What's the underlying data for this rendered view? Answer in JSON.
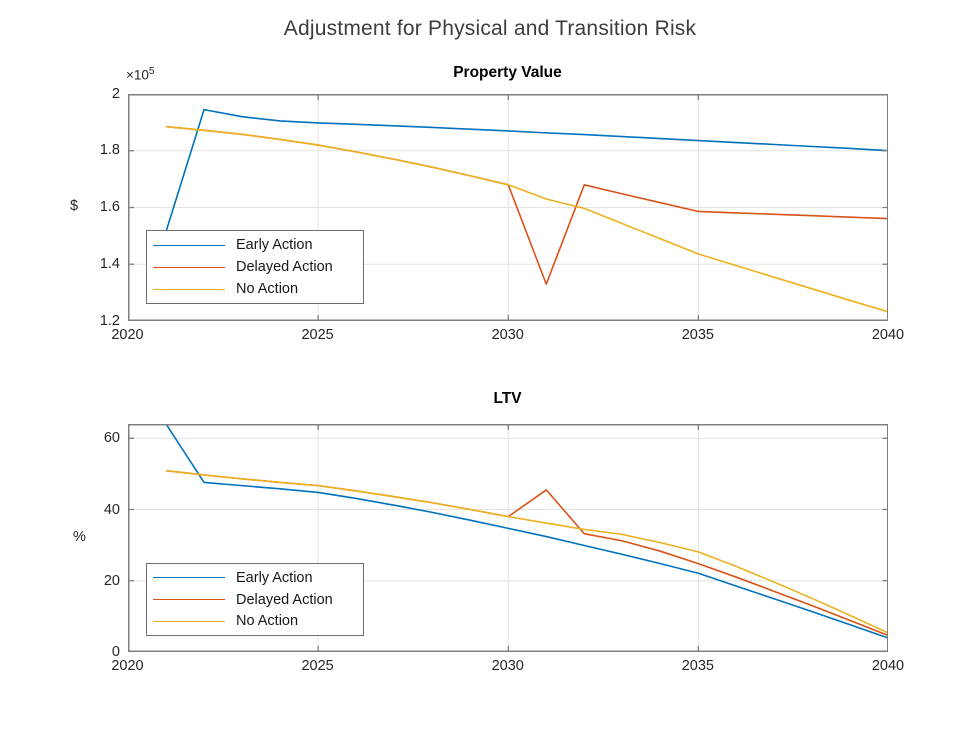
{
  "figure": {
    "title": "Adjustment for Physical and Transition Risk"
  },
  "palette": {
    "early": "#0072BD",
    "delayed": "#D95319",
    "none": "#EDB120",
    "grid": "#e3e3e3",
    "frame": "#7f7f7f",
    "tick_text": "#262626"
  },
  "chart_data": [
    {
      "type": "line",
      "title": "Property Value",
      "ylabel": "$",
      "y_exponent": {
        "mantissa": "×10",
        "exponent": "5"
      },
      "y_unit_note": "values in units of 10^5 dollars",
      "grid": true,
      "legend_position": "lower-left",
      "xlim": [
        2020,
        2040
      ],
      "ylim": [
        1.2,
        2.0
      ],
      "xticks": [
        2020,
        2025,
        2030,
        2035,
        2040
      ],
      "xtick_labels": [
        "2020",
        "2025",
        "2030",
        "2035",
        "2040"
      ],
      "yticks": [
        1.2,
        1.4,
        1.6,
        1.8,
        2.0
      ],
      "ytick_labels": [
        "1.2",
        "1.4",
        "1.6",
        "1.8",
        "2"
      ],
      "x": [
        2021,
        2022,
        2023,
        2024,
        2025,
        2026,
        2027,
        2028,
        2029,
        2030,
        2031,
        2032,
        2033,
        2034,
        2035,
        2036,
        2037,
        2038,
        2039,
        2040
      ],
      "series": [
        {
          "name": "Early Action",
          "color": "early",
          "values": [
            1.515,
            1.945,
            1.92,
            1.905,
            1.898,
            1.893,
            1.888,
            1.882,
            1.876,
            1.87,
            1.863,
            1.857,
            1.85,
            1.843,
            1.836,
            1.829,
            1.822,
            1.815,
            1.808,
            1.8
          ]
        },
        {
          "name": "Delayed Action",
          "color": "delayed",
          "values": [
            1.885,
            1.872,
            1.858,
            1.84,
            1.82,
            1.796,
            1.77,
            1.742,
            1.712,
            1.68,
            1.33,
            1.68,
            1.648,
            1.617,
            1.586,
            1.581,
            1.576,
            1.571,
            1.566,
            1.561
          ]
        },
        {
          "name": "No Action",
          "color": "none",
          "values": [
            1.885,
            1.872,
            1.858,
            1.84,
            1.82,
            1.796,
            1.77,
            1.742,
            1.712,
            1.68,
            1.63,
            1.597,
            1.543,
            1.49,
            1.436,
            1.395,
            1.354,
            1.313,
            1.272,
            1.232
          ]
        }
      ]
    },
    {
      "type": "line",
      "title": "LTV",
      "ylabel": "%",
      "grid": true,
      "legend_position": "lower-left",
      "xlim": [
        2020,
        2040
      ],
      "ylim": [
        0,
        64
      ],
      "xticks": [
        2020,
        2025,
        2030,
        2035,
        2040
      ],
      "xtick_labels": [
        "2020",
        "2025",
        "2030",
        "2035",
        "2040"
      ],
      "yticks": [
        0,
        20,
        40,
        60
      ],
      "ytick_labels": [
        "0",
        "20",
        "40",
        "60"
      ],
      "x": [
        2021,
        2022,
        2023,
        2024,
        2025,
        2026,
        2027,
        2028,
        2029,
        2030,
        2031,
        2032,
        2033,
        2034,
        2035,
        2036,
        2037,
        2038,
        2039,
        2040
      ],
      "series": [
        {
          "name": "Early Action",
          "color": "early",
          "values": [
            64,
            47.6,
            46.7,
            45.8,
            44.8,
            43.1,
            41.2,
            39.2,
            37.0,
            34.7,
            32.4,
            29.9,
            27.4,
            24.8,
            22.1,
            18.5,
            14.9,
            11.3,
            7.6,
            3.9
          ]
        },
        {
          "name": "Delayed Action",
          "color": "delayed",
          "values": [
            50.9,
            49.7,
            48.6,
            47.6,
            46.7,
            45.2,
            43.6,
            41.9,
            40.0,
            38.0,
            45.5,
            33.2,
            31.2,
            28.3,
            24.8,
            21.0,
            17.0,
            13.0,
            8.8,
            4.6
          ]
        },
        {
          "name": "No Action",
          "color": "none",
          "values": [
            50.9,
            49.7,
            48.6,
            47.6,
            46.7,
            45.2,
            43.6,
            41.9,
            40.0,
            38.0,
            36.2,
            34.4,
            33.0,
            30.7,
            28.1,
            24.0,
            19.6,
            15.0,
            10.2,
            5.3
          ]
        }
      ]
    }
  ]
}
